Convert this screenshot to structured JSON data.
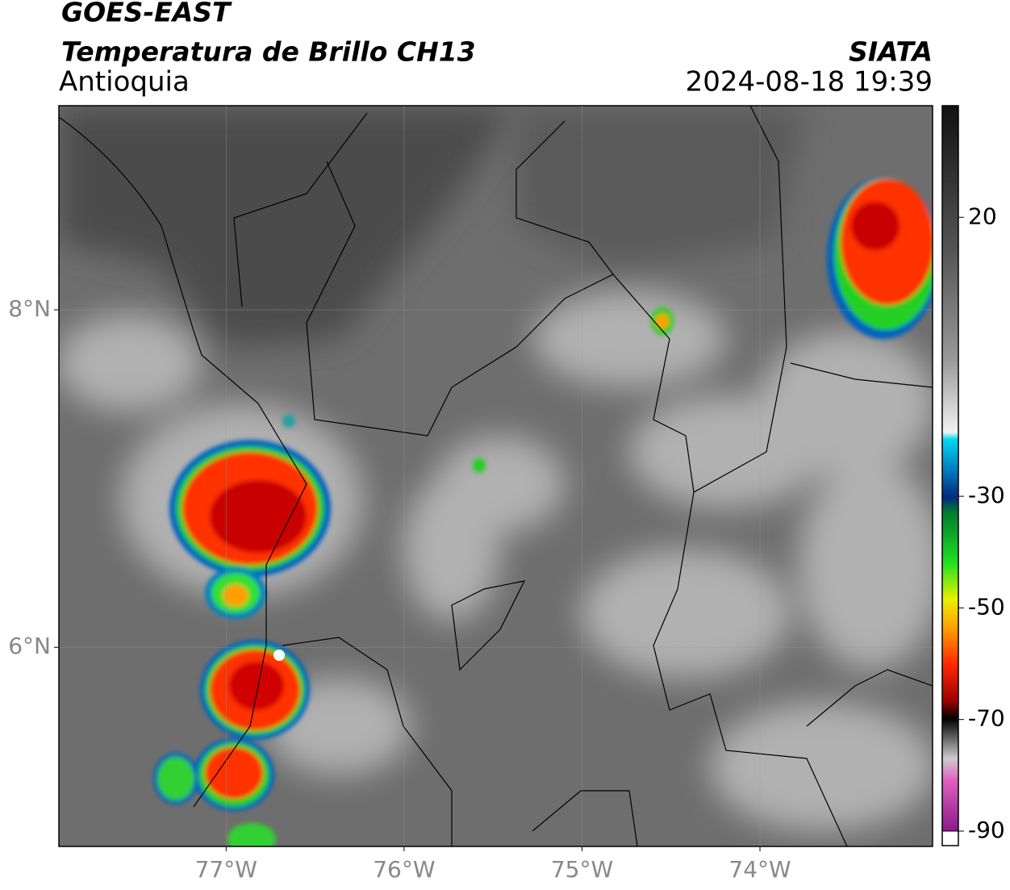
{
  "header": {
    "satellite": "GOES-EAST",
    "product": "Temperatura de Brillo CH13",
    "region": "Antioquia",
    "source": "SIATA",
    "datetime": "2024-08-18 19:39"
  },
  "map": {
    "xlim": [
      -77.94,
      -73.03
    ],
    "ylim": [
      4.82,
      9.21
    ],
    "xticks": [
      {
        "value": -77,
        "label": "77°W"
      },
      {
        "value": -76,
        "label": "76°W"
      },
      {
        "value": -75,
        "label": "75°W"
      },
      {
        "value": -74,
        "label": "74°W"
      }
    ],
    "yticks": [
      {
        "value": 8,
        "label": "8°N"
      },
      {
        "value": 6,
        "label": "6°N"
      }
    ],
    "grid": true
  },
  "colorbar": {
    "lim": [
      -90,
      40
    ],
    "ticks": [
      20,
      -30,
      -50,
      -70,
      -90
    ]
  }
}
